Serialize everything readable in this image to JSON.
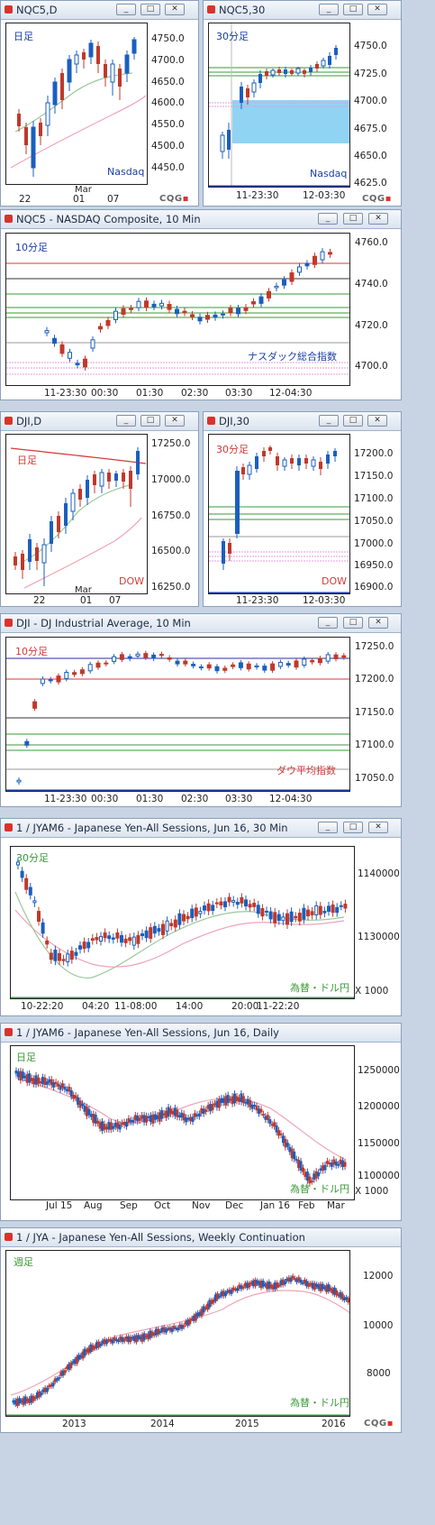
{
  "colors": {
    "up": "#1a5fbf",
    "down": "#c0392b",
    "ma_short": "#9bc99b",
    "ma_long": "#f2a2b8",
    "res": "#d43a3a",
    "sup": "#3a9a3a",
    "pink": "#e39be0",
    "highlight": "#7ecbf1"
  },
  "btns": {
    "min": "_",
    "max": "□",
    "close": "✕"
  },
  "cqg": "CQG",
  "w1": {
    "title": "NQC5,D",
    "label": "日足",
    "note": "Nasdaq",
    "yticks": [
      "4750.0",
      "4700.0",
      "4650.0",
      "4600.0",
      "4550.0",
      "4500.0",
      "4450.0"
    ],
    "mtop": "Mar",
    "xticks": [
      "22",
      "01",
      "07"
    ]
  },
  "w2": {
    "title": "NQC5,30",
    "label": "30分足",
    "note": "Nasdaq",
    "yticks": [
      "4750.0",
      "4725.0",
      "4700.0",
      "4675.0",
      "4650.0",
      "4625.0"
    ],
    "xticks": [
      "11-23:30",
      "12-03:30"
    ]
  },
  "w3": {
    "title": "NQC5 - NASDAQ Composite, 10 Min",
    "label": "10分足",
    "note": "ナスダック総合指数",
    "yticks": [
      "4760.0",
      "4740.0",
      "4720.0",
      "4700.0"
    ],
    "xticks": [
      "11-23:30",
      "00:30",
      "01:30",
      "02:30",
      "03:30",
      "12-04:30"
    ]
  },
  "w4": {
    "title": "DJI,D",
    "label": "日足",
    "note": "DOW",
    "yticks": [
      "17250.0",
      "17000.0",
      "16750.0",
      "16500.0",
      "16250.0"
    ],
    "mtop": "Mar",
    "xticks": [
      "22",
      "01",
      "07"
    ]
  },
  "w5": {
    "title": "DJI,30",
    "label": "30分足",
    "note": "DOW",
    "yticks": [
      "17200.0",
      "17150.0",
      "17100.0",
      "17050.0",
      "17000.0",
      "16950.0",
      "16900.0"
    ],
    "xticks": [
      "11-23:30",
      "12-03:30"
    ]
  },
  "w6": {
    "title": "DJI - DJ Industrial Average, 10 Min",
    "label": "10分足",
    "note": "ダウ平均指数",
    "yticks": [
      "17250.0",
      "17200.0",
      "17150.0",
      "17100.0",
      "17050.0"
    ],
    "xticks": [
      "11-23:30",
      "00:30",
      "01:30",
      "02:30",
      "03:30",
      "12-04:30"
    ]
  },
  "w7": {
    "title": "1 / JYAM6 - Japanese Yen-All Sessions, Jun 16, 30 Min",
    "label": "30分足",
    "note": "為替・ドル円",
    "yticks": [
      "1140000",
      "1130000"
    ],
    "unit": "X 1000",
    "xticks": [
      "10-22:20",
      "04:20",
      "11-08:00",
      "14:00",
      "20:00",
      "11-22:20"
    ]
  },
  "w8": {
    "title": "1 / JYAM6 - Japanese Yen-All Sessions, Jun 16, Daily",
    "label": "日足",
    "note": "為替・ドル円",
    "yticks": [
      "1250000",
      "1200000",
      "1150000",
      "1100000"
    ],
    "unit": "X 1000",
    "xticks": [
      "Jul 15",
      "Aug",
      "Sep",
      "Oct",
      "Nov",
      "Dec",
      "Jan 16",
      "Feb",
      "Mar"
    ]
  },
  "w9": {
    "title": "1 / JYA - Japanese Yen-All Sessions, Weekly Continuation",
    "label": "週足",
    "note": "為替・ドル円",
    "yticks": [
      "12000",
      "10000",
      "8000"
    ],
    "xticks": [
      "2013",
      "2014",
      "2015",
      "2016"
    ]
  }
}
